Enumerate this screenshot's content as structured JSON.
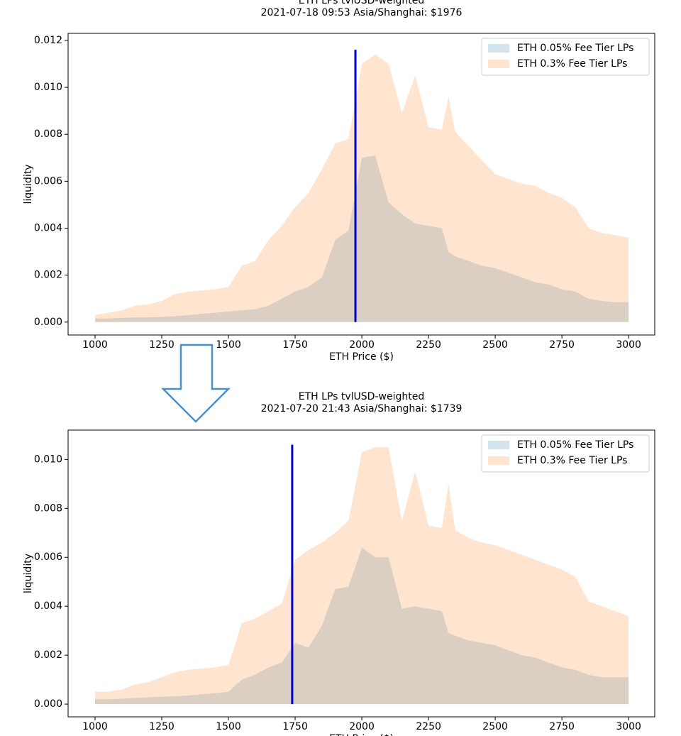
{
  "chart_data": [
    {
      "type": "area",
      "title": "ETH LPs tvlUSD-weighted",
      "subtitle": "2021-07-18 09:53 Asia/Shanghai: $1976",
      "xlabel": "ETH Price ($)",
      "ylabel": "liquidity",
      "x": [
        1000,
        1050,
        1100,
        1150,
        1200,
        1250,
        1300,
        1350,
        1400,
        1450,
        1500,
        1550,
        1600,
        1650,
        1700,
        1750,
        1800,
        1850,
        1900,
        1950,
        2000,
        2050,
        2100,
        2150,
        2200,
        2250,
        2300,
        2325,
        2350,
        2400,
        2450,
        2500,
        2550,
        2600,
        2650,
        2700,
        2750,
        2800,
        2850,
        2900,
        2950,
        3000
      ],
      "series": [
        {
          "name": "ETH 0.05% Fee Tier LPs",
          "color": "#1f77b4",
          "values": [
            0.00015,
            0.00015,
            0.00018,
            0.0002,
            0.0002,
            0.00022,
            0.00025,
            0.0003,
            0.00035,
            0.0004,
            0.00045,
            0.0005,
            0.00055,
            0.0007,
            0.001,
            0.0013,
            0.0015,
            0.0019,
            0.0035,
            0.0039,
            0.007,
            0.0071,
            0.0051,
            0.0046,
            0.0042,
            0.0041,
            0.004,
            0.003,
            0.0028,
            0.0026,
            0.0024,
            0.0023,
            0.0021,
            0.0019,
            0.0017,
            0.0016,
            0.0014,
            0.0013,
            0.001,
            0.0009,
            0.00085,
            0.00085
          ]
        },
        {
          "name": "ETH 0.3% Fee Tier LPs",
          "color": "#ff7f0e",
          "values": [
            0.0003,
            0.0004,
            0.0005,
            0.0007,
            0.00075,
            0.0009,
            0.0012,
            0.0013,
            0.00135,
            0.0014,
            0.0015,
            0.0024,
            0.0026,
            0.0035,
            0.0041,
            0.0049,
            0.0055,
            0.0065,
            0.0076,
            0.0078,
            0.011,
            0.0114,
            0.011,
            0.0089,
            0.0105,
            0.0083,
            0.0082,
            0.0096,
            0.0081,
            0.0075,
            0.0069,
            0.0063,
            0.0061,
            0.0059,
            0.0058,
            0.0055,
            0.0053,
            0.0049,
            0.004,
            0.0038,
            0.0037,
            0.0036
          ]
        }
      ],
      "alpha": 0.2,
      "price_line": {
        "x": 1976,
        "ymax": 0.0116,
        "color": "#0000cc"
      },
      "xlim": [
        899,
        3098
      ],
      "ylim": [
        -0.00055,
        0.0123
      ],
      "xticks": [
        1000,
        1250,
        1500,
        1750,
        2000,
        2250,
        2500,
        2750,
        3000
      ],
      "yticks": [
        {
          "value": 0,
          "label": "0.000"
        },
        {
          "value": 0.002,
          "label": "0.002"
        },
        {
          "value": 0.004,
          "label": "0.004"
        },
        {
          "value": 0.006,
          "label": "0.006"
        },
        {
          "value": 0.008,
          "label": "0.008"
        },
        {
          "value": 0.01,
          "label": "0.010"
        },
        {
          "value": 0.012,
          "label": "0.012"
        }
      ],
      "legend": "upper right"
    },
    {
      "type": "area",
      "title": "ETH LPs tvlUSD-weighted",
      "subtitle": "2021-07-20 21:43 Asia/Shanghai: $1739",
      "xlabel": "ETH Price ($)",
      "ylabel": "liquidity",
      "x": [
        1000,
        1050,
        1100,
        1150,
        1200,
        1250,
        1300,
        1350,
        1400,
        1450,
        1500,
        1550,
        1600,
        1650,
        1700,
        1750,
        1800,
        1850,
        1900,
        1950,
        2000,
        2050,
        2100,
        2150,
        2200,
        2250,
        2300,
        2325,
        2350,
        2400,
        2450,
        2500,
        2550,
        2600,
        2650,
        2700,
        2750,
        2800,
        2850,
        2900,
        2950,
        3000
      ],
      "series": [
        {
          "name": "ETH 0.05% Fee Tier LPs",
          "color": "#1f77b4",
          "values": [
            0.0002,
            0.0002,
            0.00022,
            0.00025,
            0.00028,
            0.0003,
            0.00032,
            0.00035,
            0.0004,
            0.00045,
            0.0005,
            0.001,
            0.0012,
            0.0015,
            0.0017,
            0.0025,
            0.0023,
            0.0032,
            0.0047,
            0.0048,
            0.0064,
            0.006,
            0.006,
            0.0039,
            0.004,
            0.0039,
            0.0038,
            0.0029,
            0.0028,
            0.0026,
            0.0025,
            0.0024,
            0.0022,
            0.002,
            0.0019,
            0.0017,
            0.0015,
            0.0014,
            0.0012,
            0.0011,
            0.0011,
            0.0011
          ]
        },
        {
          "name": "ETH 0.3% Fee Tier LPs",
          "color": "#ff7f0e",
          "values": [
            0.0005,
            0.0005,
            0.0006,
            0.0008,
            0.0009,
            0.0011,
            0.0013,
            0.0014,
            0.00145,
            0.0015,
            0.0016,
            0.0033,
            0.0035,
            0.0038,
            0.0041,
            0.0059,
            0.0063,
            0.0066,
            0.007,
            0.0075,
            0.0103,
            0.0105,
            0.0105,
            0.0075,
            0.0095,
            0.0073,
            0.0072,
            0.009,
            0.0071,
            0.0068,
            0.0066,
            0.0065,
            0.0063,
            0.0061,
            0.0059,
            0.0057,
            0.0055,
            0.0052,
            0.0042,
            0.004,
            0.0038,
            0.0036
          ]
        }
      ],
      "alpha": 0.2,
      "price_line": {
        "x": 1739,
        "ymax": 0.0106,
        "color": "#0000cc"
      },
      "xlim": [
        899,
        3098
      ],
      "ylim": [
        -0.00052,
        0.0112
      ],
      "xticks": [
        1000,
        1250,
        1500,
        1750,
        2000,
        2250,
        2500,
        2750,
        3000
      ],
      "yticks": [
        {
          "value": 0,
          "label": "0.000"
        },
        {
          "value": 0.002,
          "label": "0.002"
        },
        {
          "value": 0.004,
          "label": "0.004"
        },
        {
          "value": 0.006,
          "label": "0.006"
        },
        {
          "value": 0.008,
          "label": "0.008"
        },
        {
          "value": 0.01,
          "label": "0.010"
        }
      ],
      "legend": "upper right"
    }
  ]
}
